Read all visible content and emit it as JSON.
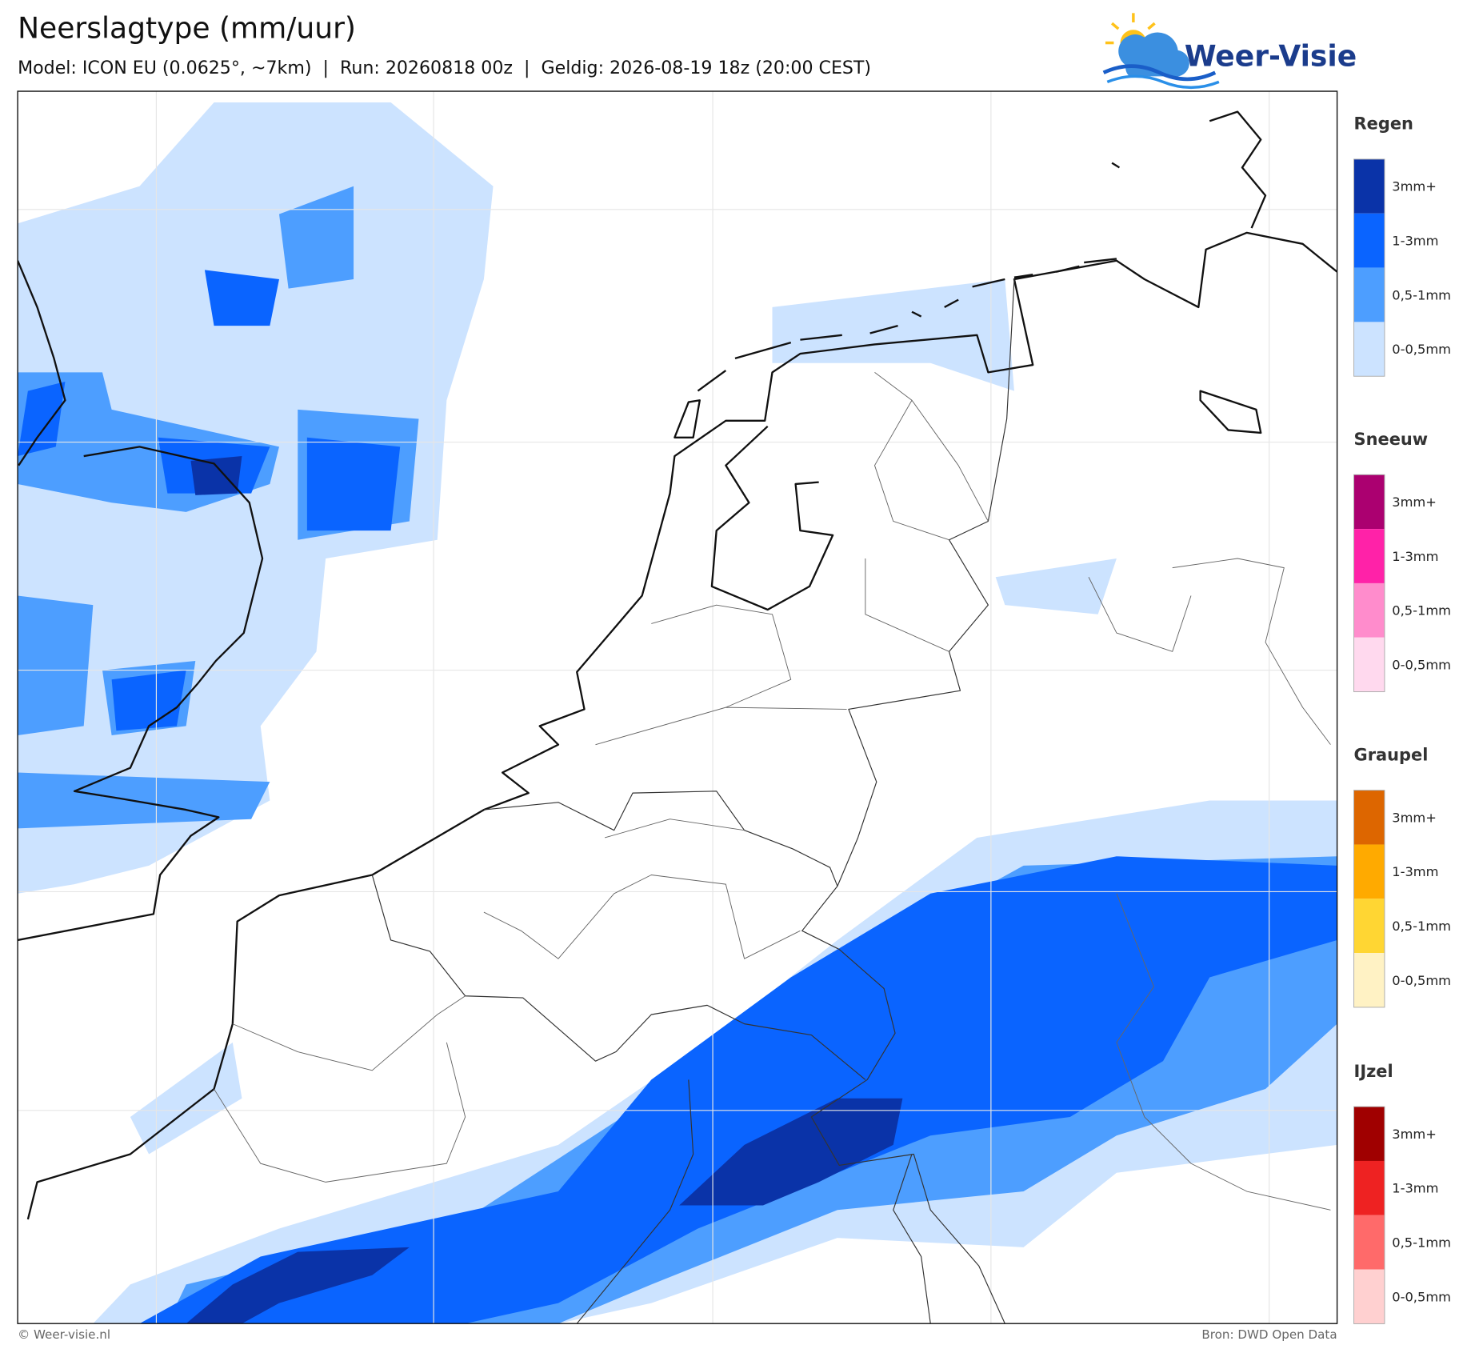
{
  "header": {
    "title": "Neerslagtype (mm/uur)",
    "subtitle": "Model: ICON EU (0.0625°, ~7km)  |  Run: 20260818 00z  |  Geldig: 2026-08-19 18z (20:00 CEST)",
    "logo": "Weer-Visie"
  },
  "legend": [
    {
      "title": "Regen",
      "items": [
        {
          "label": "3mm+",
          "color": "#0a33a8"
        },
        {
          "label": "1-3mm",
          "color": "#0a64ff"
        },
        {
          "label": "0,5-1mm",
          "color": "#4d9eff"
        },
        {
          "label": "0-0,5mm",
          "color": "#cce3ff"
        }
      ]
    },
    {
      "title": "Sneeuw",
      "items": [
        {
          "label": "3mm+",
          "color": "#ab0070"
        },
        {
          "label": "1-3mm",
          "color": "#ff22a8"
        },
        {
          "label": "0,5-1mm",
          "color": "#ff8ccc"
        },
        {
          "label": "0-0,5mm",
          "color": "#ffd9ee"
        }
      ]
    },
    {
      "title": "Graupel",
      "items": [
        {
          "label": "3mm+",
          "color": "#dd6600"
        },
        {
          "label": "1-3mm",
          "color": "#ffaa00"
        },
        {
          "label": "0,5-1mm",
          "color": "#ffd633"
        },
        {
          "label": "0-0,5mm",
          "color": "#fff2c4"
        }
      ]
    },
    {
      "title": "IJzel",
      "items": [
        {
          "label": "3mm+",
          "color": "#a00000"
        },
        {
          "label": "1-3mm",
          "color": "#ee2222"
        },
        {
          "label": "0,5-1mm",
          "color": "#ff6a6a"
        },
        {
          "label": "0-0,5mm",
          "color": "#ffd0d0"
        }
      ]
    }
  ],
  "footer": {
    "credit": "© Weer-visie.nl",
    "source": "Bron: DWD Open Data"
  }
}
